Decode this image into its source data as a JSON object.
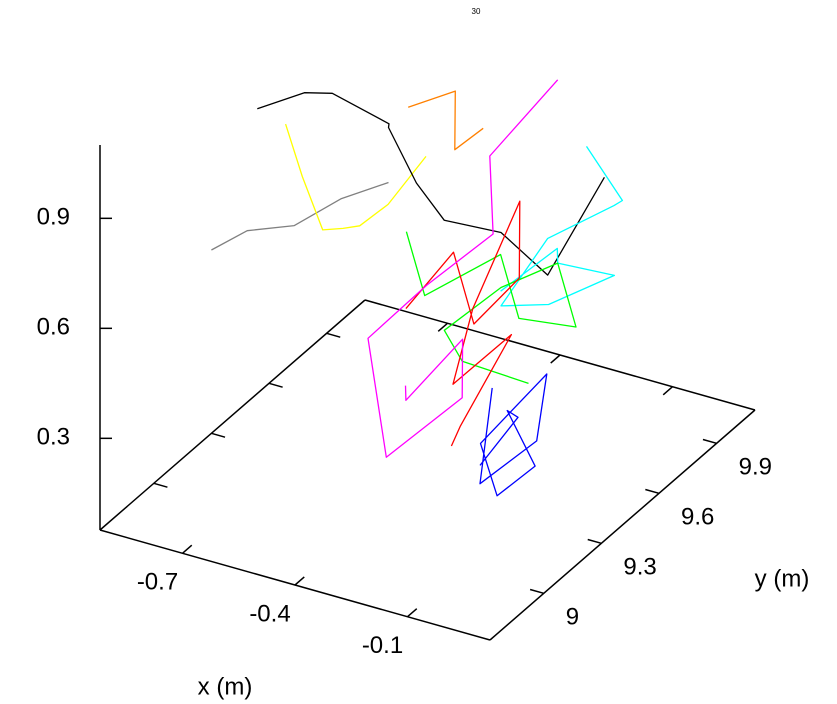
{
  "chart_data": {
    "type": "line3d",
    "annotation": "30",
    "xlabel": "x (m)",
    "ylabel": "y (m)",
    "xlim": [
      -0.92,
      0.12
    ],
    "ylim": [
      8.72,
      10.1
    ],
    "zlim": [
      0.05,
      1.1
    ],
    "xticks": [
      -0.7,
      -0.4,
      -0.1
    ],
    "yticks": [
      9,
      9.3,
      9.6,
      9.9
    ],
    "zticks": [
      0.3,
      0.6,
      0.9
    ],
    "series": [
      {
        "color": "#808080",
        "x": [
          -0.92,
          -0.85,
          -0.75,
          -0.65,
          -0.55
        ],
        "y": [
          9.3,
          9.35,
          9.4,
          9.45,
          9.5
        ],
        "z": [
          0.55,
          0.6,
          0.62,
          0.7,
          0.75
        ]
      },
      {
        "color": "#ffff00",
        "x": [
          -0.85,
          -0.78,
          -0.7,
          -0.62,
          -0.55,
          -0.5,
          -0.45
        ],
        "y": [
          9.55,
          9.5,
          9.45,
          9.4,
          9.35,
          9.4,
          9.5
        ],
        "z": [
          0.8,
          0.7,
          0.6,
          0.65,
          0.7,
          0.75,
          0.85
        ]
      },
      {
        "color": "#ff8000",
        "x": [
          -0.6,
          -0.5,
          -0.45,
          -0.4
        ],
        "y": [
          9.7,
          9.75,
          9.65,
          9.7
        ],
        "z": [
          0.85,
          0.9,
          0.8,
          0.85
        ]
      },
      {
        "color": "#000000",
        "x": [
          -0.9,
          -0.8,
          -0.7,
          -0.6,
          -0.55,
          -0.45,
          -0.35,
          -0.25,
          -0.1,
          0.0
        ],
        "y": [
          9.5,
          9.55,
          9.5,
          9.6,
          9.5,
          9.45,
          9.4,
          9.5,
          9.45,
          9.55
        ],
        "z": [
          0.85,
          0.9,
          0.95,
          0.85,
          0.9,
          0.8,
          0.75,
          0.7,
          0.65,
          0.9
        ]
      },
      {
        "color": "#00ffff",
        "x": [
          -0.2,
          -0.1,
          -0.15,
          -0.05,
          -0.2,
          -0.25,
          -0.1,
          0.0,
          -0.08,
          -0.15
        ],
        "y": [
          9.4,
          9.5,
          9.6,
          9.7,
          9.65,
          9.5,
          9.45,
          9.6,
          9.8,
          9.75
        ],
        "z": [
          0.6,
          0.7,
          0.6,
          0.55,
          0.45,
          0.5,
          0.75,
          0.8,
          0.7,
          0.85
        ]
      },
      {
        "color": "#00ff00",
        "x": [
          -0.4,
          -0.3,
          -0.2,
          -0.1,
          -0.05,
          -0.15,
          -0.25,
          -0.35,
          -0.2,
          -0.1
        ],
        "y": [
          9.3,
          9.2,
          9.4,
          9.3,
          9.5,
          9.6,
          9.5,
          9.4,
          9.2,
          9.35
        ],
        "z": [
          0.75,
          0.65,
          0.7,
          0.6,
          0.5,
          0.6,
          0.55,
          0.45,
          0.5,
          0.4
        ]
      },
      {
        "color": "#ff0000",
        "x": [
          -0.35,
          -0.3,
          -0.22,
          -0.15,
          -0.2,
          -0.3,
          -0.25,
          -0.12,
          -0.18,
          -0.28
        ],
        "y": [
          9.2,
          9.35,
          9.3,
          9.4,
          9.5,
          9.45,
          9.25,
          9.3,
          9.15,
          9.3
        ],
        "z": [
          0.6,
          0.7,
          0.55,
          0.65,
          0.8,
          0.5,
          0.4,
          0.55,
          0.35,
          0.2
        ]
      },
      {
        "color": "#ff00ff",
        "x": [
          -0.3,
          -0.35,
          -0.25,
          -0.2,
          -0.3,
          -0.4,
          -0.32,
          -0.22,
          -0.28,
          -0.15
        ],
        "y": [
          9.1,
          9.2,
          9.3,
          9.2,
          9.0,
          9.1,
          9.25,
          9.4,
          9.5,
          9.6
        ],
        "z": [
          0.45,
          0.35,
          0.5,
          0.4,
          0.3,
          0.55,
          0.65,
          0.75,
          0.9,
          1.1
        ]
      },
      {
        "color": "#0000ff",
        "x": [
          -0.05,
          0.0,
          -0.08,
          0.02,
          -0.03,
          -0.1,
          0.0,
          0.05,
          -0.05,
          -0.12
        ],
        "y": [
          9.0,
          9.1,
          9.2,
          9.15,
          9.05,
          9.1,
          9.25,
          9.1,
          9.0,
          9.2
        ],
        "z": [
          0.35,
          0.45,
          0.4,
          0.3,
          0.25,
          0.35,
          0.5,
          0.4,
          0.3,
          0.45
        ]
      }
    ]
  }
}
